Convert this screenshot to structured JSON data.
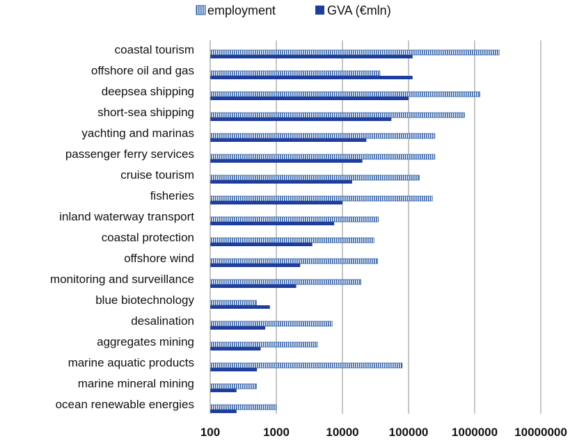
{
  "chart_data": {
    "type": "bar",
    "orientation": "horizontal",
    "x_scale": "log",
    "xlim": [
      100,
      10000000
    ],
    "x_ticks": [
      "100",
      "1000",
      "10000",
      "100000",
      "1000000",
      "10000000"
    ],
    "grid": "vertical",
    "legend_position": "top",
    "title": "",
    "xlabel": "",
    "ylabel": "",
    "categories": [
      "coastal tourism",
      "offshore oil and gas",
      "deepsea shipping",
      "short-sea shipping",
      "yachting and marinas",
      "passenger ferry services",
      "cruise tourism",
      "fisheries",
      "inland waterway transport",
      "coastal protection",
      "offshore wind",
      "monitoring and surveillance",
      "blue biotechnology",
      "desalination",
      "aggregates mining",
      "marine aquatic products",
      "marine mineral mining",
      "ocean renewable energies"
    ],
    "series": [
      {
        "name": "employment",
        "color": "#2e5fa8",
        "pattern": "vertical-hatch",
        "values": [
          2350000,
          37000,
          1200000,
          700000,
          250000,
          250000,
          145000,
          230000,
          35000,
          30000,
          34000,
          19000,
          500,
          7000,
          4200,
          80000,
          500,
          1000
        ]
      },
      {
        "name": "GVA (€mln)",
        "color": "#1f3d9c",
        "pattern": "solid",
        "values": [
          115000,
          115000,
          100000,
          55000,
          23000,
          20000,
          14000,
          10000,
          7500,
          3500,
          2300,
          2000,
          800,
          680,
          580,
          510,
          250,
          250
        ]
      }
    ]
  }
}
